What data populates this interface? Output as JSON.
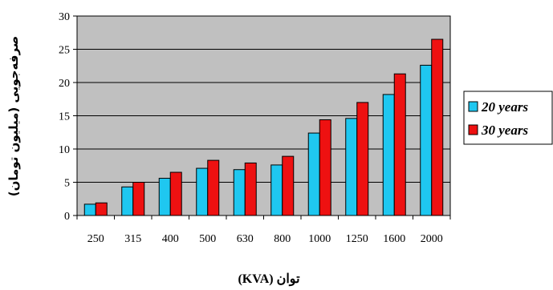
{
  "chart_data": {
    "type": "bar",
    "title": "",
    "xlabel": "توان (KVA)",
    "ylabel": "صرفه‌جویی (میلیون تومان)",
    "categories": [
      "250",
      "315",
      "400",
      "500",
      "630",
      "800",
      "1000",
      "1250",
      "1600",
      "2000"
    ],
    "series": [
      {
        "name": "20 years",
        "values": [
          1.7,
          4.3,
          5.6,
          7.1,
          6.9,
          7.6,
          12.4,
          14.6,
          18.2,
          22.6
        ],
        "color": "#1fc7f0"
      },
      {
        "name": "30 years",
        "values": [
          1.9,
          5.0,
          6.5,
          8.3,
          7.9,
          8.9,
          14.4,
          17.0,
          21.3,
          26.5
        ],
        "color": "#ee1111"
      }
    ],
    "ylim": [
      0,
      30
    ],
    "yticks": [
      0,
      5,
      10,
      15,
      20,
      25,
      30
    ],
    "grid": true,
    "legend_position": "right",
    "plot_background": "#c0c0c0"
  }
}
